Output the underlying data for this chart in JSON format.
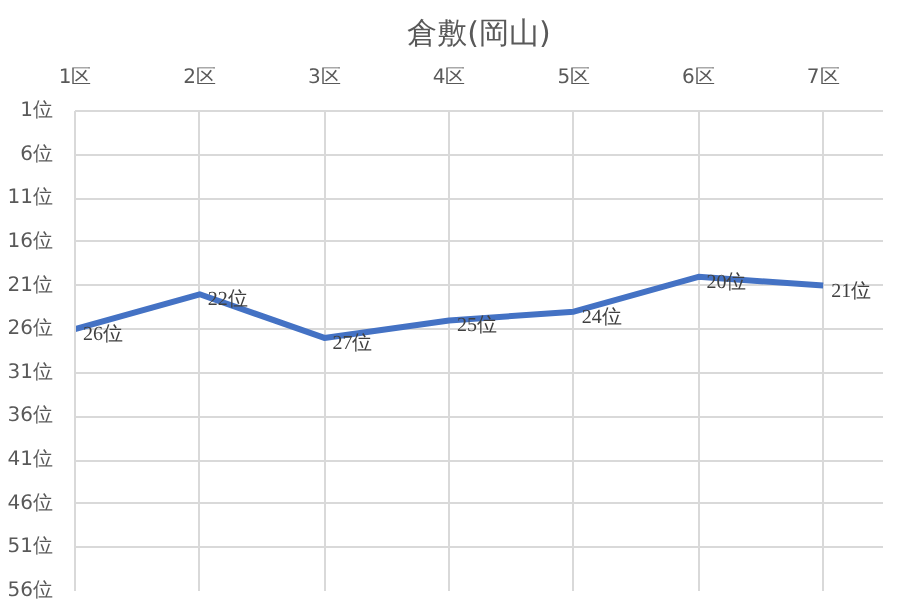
{
  "chart_data": {
    "type": "line",
    "title": "倉敷(岡山)",
    "categories": [
      "1区",
      "2区",
      "3区",
      "4区",
      "5区",
      "6区",
      "7区"
    ],
    "series": [
      {
        "color": "#4472c4",
        "values": [
          26,
          22,
          27,
          25,
          24,
          20,
          21
        ],
        "value_labels": [
          "26位",
          "22位",
          "27位",
          "25位",
          "24位",
          "20位",
          "21位"
        ]
      }
    ],
    "ylim": [
      56,
      1
    ],
    "yticks": [
      {
        "value": 1,
        "label": "1位"
      },
      {
        "value": 6,
        "label": "6位"
      },
      {
        "value": 11,
        "label": "11位"
      },
      {
        "value": 16,
        "label": "16位"
      },
      {
        "value": 21,
        "label": "21位"
      },
      {
        "value": 26,
        "label": "26位"
      },
      {
        "value": 31,
        "label": "31位"
      },
      {
        "value": 36,
        "label": "36位"
      },
      {
        "value": 41,
        "label": "41位"
      },
      {
        "value": 46,
        "label": "46位"
      },
      {
        "value": 51,
        "label": "51位"
      },
      {
        "value": 56,
        "label": "56位"
      }
    ],
    "grid": true,
    "marker": "none",
    "line_style": "solid"
  }
}
